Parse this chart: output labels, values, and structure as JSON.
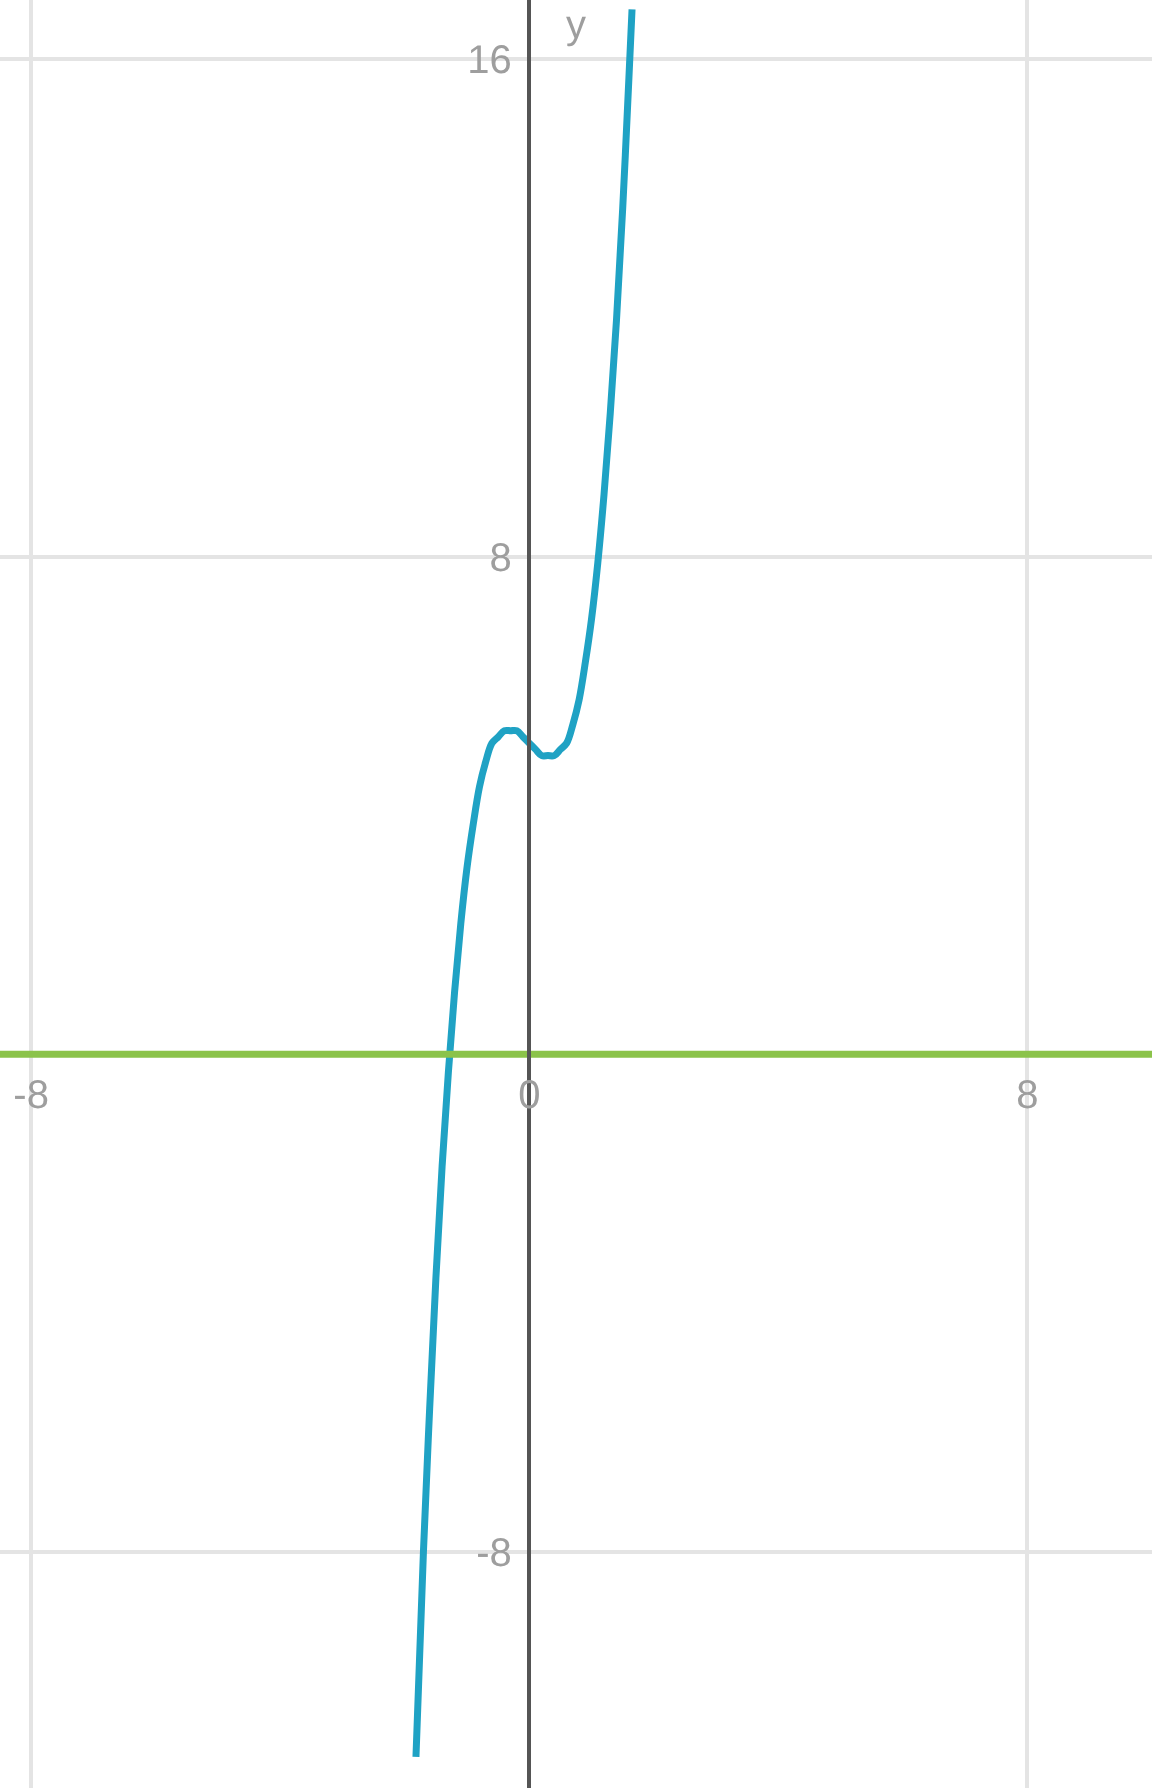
{
  "chart_data": {
    "type": "line",
    "ylabel": "y",
    "x": [
      -1.82,
      -1.7,
      -1.6,
      -1.5,
      -1.4,
      -1.3,
      -1.2,
      -1.1,
      -1.0,
      -0.9,
      -0.8,
      -0.7,
      -0.6,
      -0.5,
      -0.4,
      -0.3,
      -0.2,
      -0.1,
      0,
      0.1,
      0.2,
      0.3,
      0.4,
      0.5,
      0.6,
      0.7,
      0.8,
      0.9,
      1.0,
      1.1,
      1.2,
      1.3,
      1.4,
      1.5,
      1.6,
      1.65
    ],
    "series": [
      {
        "color": "#1fa2c4",
        "values": [
          -11.3,
          -8.0,
          -5.7,
          -3.6,
          -1.8,
          -0.3,
          1.0,
          2.1,
          3.0,
          3.7,
          4.3,
          4.7,
          5.0,
          5.1,
          5.2,
          5.2,
          5.2,
          5.1,
          5.0,
          4.9,
          4.8,
          4.8,
          4.8,
          4.9,
          5.0,
          5.3,
          5.7,
          6.3,
          7.0,
          7.9,
          9.0,
          10.3,
          11.8,
          13.6,
          15.7,
          16.8
        ]
      },
      {
        "color": "#8bc34a",
        "x": [
          -8.5,
          10
        ],
        "values": [
          0,
          0
        ]
      }
    ],
    "xlim": [
      -8.5,
      10
    ],
    "ylim": [
      -11.8,
      16.95
    ],
    "xticks": [
      -8,
      0,
      8
    ],
    "yticks": [
      -8,
      8,
      16
    ],
    "grid": true,
    "marker": "none",
    "line_style": "solid"
  }
}
